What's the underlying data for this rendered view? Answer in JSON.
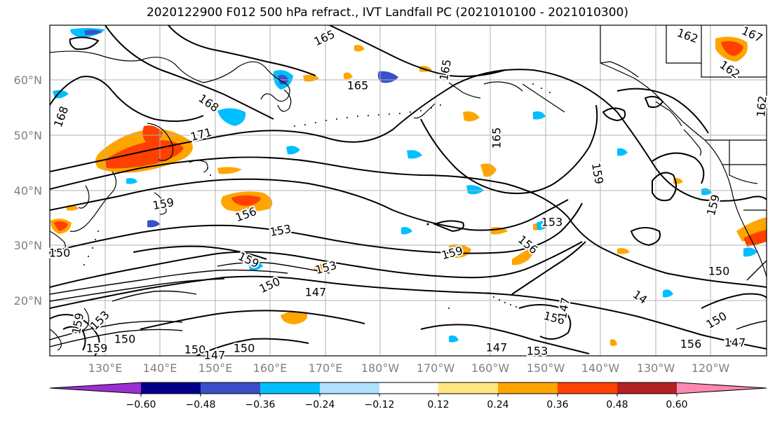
{
  "title": "2020122900 F012 500 hPa refract., IVT Landfall PC (2021010100 - 2021010300)",
  "latitude_labels": [
    "60°N",
    "50°N",
    "40°N",
    "30°N",
    "20°N"
  ],
  "longitude_labels": [
    "130°E",
    "140°E",
    "150°E",
    "160°E",
    "170°E",
    "180°W",
    "170°W",
    "160°W",
    "150°W",
    "140°W",
    "130°W",
    "120°W"
  ],
  "colorbar": {
    "ticks": [
      "−0.60",
      "−0.48",
      "−0.36",
      "−0.24",
      "−0.12",
      "0.12",
      "0.24",
      "0.36",
      "0.48",
      "0.60"
    ],
    "colors": [
      "#9b30d0",
      "#00008b",
      "#3a50c8",
      "#00bfff",
      "#b0e0ff",
      "#ffffff",
      "#ffe680",
      "#ffa500",
      "#ff4000",
      "#b22222",
      "#ff88b0"
    ]
  },
  "contour_labels": [
    {
      "text": "165"
    },
    {
      "text": "162"
    },
    {
      "text": "167"
    },
    {
      "text": "162"
    },
    {
      "text": "168"
    },
    {
      "text": "165"
    },
    {
      "text": "165"
    },
    {
      "text": "162"
    },
    {
      "text": "168"
    },
    {
      "text": "171"
    },
    {
      "text": "165"
    },
    {
      "text": "159"
    },
    {
      "text": "159"
    },
    {
      "text": "156"
    },
    {
      "text": "153"
    },
    {
      "text": "153"
    },
    {
      "text": "159"
    },
    {
      "text": "150"
    },
    {
      "text": "159"
    },
    {
      "text": "153"
    },
    {
      "text": "159"
    },
    {
      "text": "156"
    },
    {
      "text": "150"
    },
    {
      "text": "147"
    },
    {
      "text": "150"
    },
    {
      "text": "147"
    },
    {
      "text": "14"
    },
    {
      "text": "150"
    },
    {
      "text": "153"
    },
    {
      "text": "159"
    },
    {
      "text": "159"
    },
    {
      "text": "156"
    },
    {
      "text": "147"
    },
    {
      "text": "153"
    },
    {
      "text": "150"
    },
    {
      "text": "147"
    },
    {
      "text": "150"
    },
    {
      "text": "156"
    },
    {
      "text": "147"
    },
    {
      "text": "150"
    }
  ]
}
